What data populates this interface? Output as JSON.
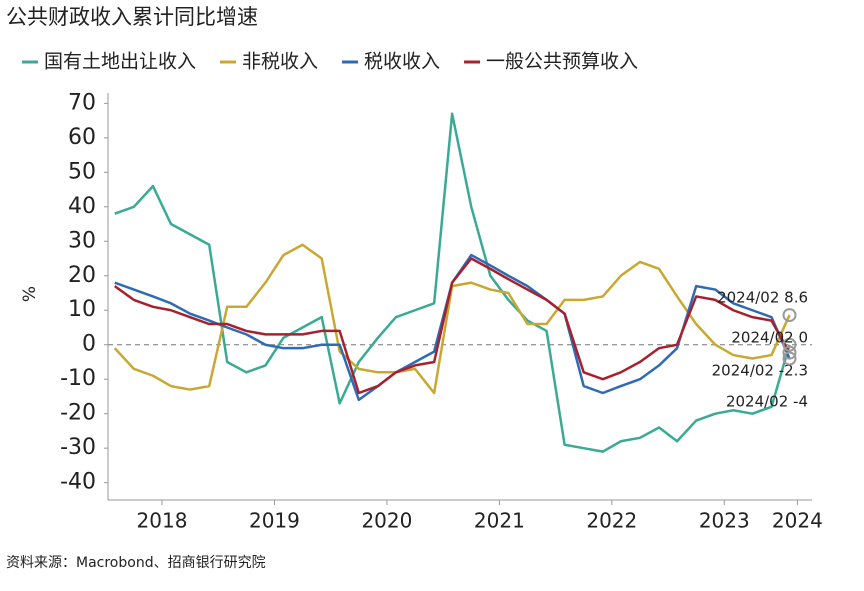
{
  "chart_data": {
    "type": "line",
    "title": "公共财政收入累计同比增速",
    "ylabel": "%",
    "source": "资料来源：Macrobond、招商银行研究院",
    "x": [
      2018.08,
      2018.25,
      2018.42,
      2018.58,
      2018.75,
      2018.92,
      2019.08,
      2019.25,
      2019.42,
      2019.58,
      2019.75,
      2019.92,
      2020.08,
      2020.25,
      2020.42,
      2020.58,
      2020.75,
      2020.92,
      2021.08,
      2021.25,
      2021.42,
      2021.58,
      2021.75,
      2021.92,
      2022.08,
      2022.25,
      2022.42,
      2022.58,
      2022.75,
      2022.92,
      2023.08,
      2023.25,
      2023.42,
      2023.58,
      2023.75,
      2023.92,
      2024.08
    ],
    "series": [
      {
        "name": "国有土地出让收入",
        "color": "#3aaa94",
        "values": [
          38,
          40,
          46,
          35,
          32,
          29,
          -5,
          -8,
          -6,
          2,
          5,
          8,
          -17,
          -5,
          2,
          8,
          10,
          12,
          67,
          40,
          20,
          13,
          7,
          4,
          -29,
          -30,
          -31,
          -28,
          -27,
          -24,
          -28,
          -22,
          -20,
          -19,
          -20,
          -18,
          0
        ]
      },
      {
        "name": "非税收入",
        "color": "#c9a832",
        "values": [
          -1,
          -7,
          -9,
          -12,
          -13,
          -12,
          11,
          11,
          18,
          26,
          29,
          25,
          -2,
          -7,
          -8,
          -8,
          -7,
          -14,
          17,
          18,
          16,
          15,
          6,
          6,
          13,
          13,
          14,
          20,
          24,
          22,
          14,
          6,
          0,
          -3,
          -4,
          -3,
          8.6
        ]
      },
      {
        "name": "税收收入",
        "color": "#2f6bb5",
        "values": [
          18,
          16,
          14,
          12,
          9,
          7,
          5,
          3,
          0,
          -1,
          -1,
          0,
          0,
          -16,
          -12,
          -8,
          -5,
          -2,
          18,
          26,
          23,
          20,
          17,
          13,
          9,
          -12,
          -14,
          -12,
          -10,
          -6,
          -1,
          17,
          16,
          12,
          10,
          8,
          -4
        ]
      },
      {
        "name": "一般公共预算收入",
        "color": "#a8202e",
        "values": [
          17,
          13,
          11,
          10,
          8,
          6,
          6,
          4,
          3,
          3,
          3,
          4,
          4,
          -14,
          -12,
          -8,
          -6,
          -5,
          18,
          25,
          22,
          19,
          16,
          13,
          9,
          -8,
          -10,
          -8,
          -5,
          -1,
          0,
          14,
          13,
          10,
          8,
          7,
          -2.3
        ]
      }
    ],
    "annotations": [
      "2024/02  8.6",
      "2024/02  0",
      "2024/02  -2.3",
      "2024/02  -4"
    ],
    "xlim": [
      2018.02,
      2024.28
    ],
    "xticks": [
      {
        "value": 2018.5,
        "label": "2018"
      },
      {
        "value": 2019.5,
        "label": "2019"
      },
      {
        "value": 2020.5,
        "label": "2020"
      },
      {
        "value": 2021.5,
        "label": "2021"
      },
      {
        "value": 2022.5,
        "label": "2022"
      },
      {
        "value": 2023.5,
        "label": "2023"
      },
      {
        "value": 2024.15,
        "label": "2024"
      }
    ],
    "ylim": [
      -43,
      73
    ],
    "yticks": [
      -40,
      -30,
      -20,
      -10,
      0,
      10,
      20,
      30,
      40,
      50,
      60,
      70
    ],
    "hline": 0,
    "legend": "top"
  }
}
